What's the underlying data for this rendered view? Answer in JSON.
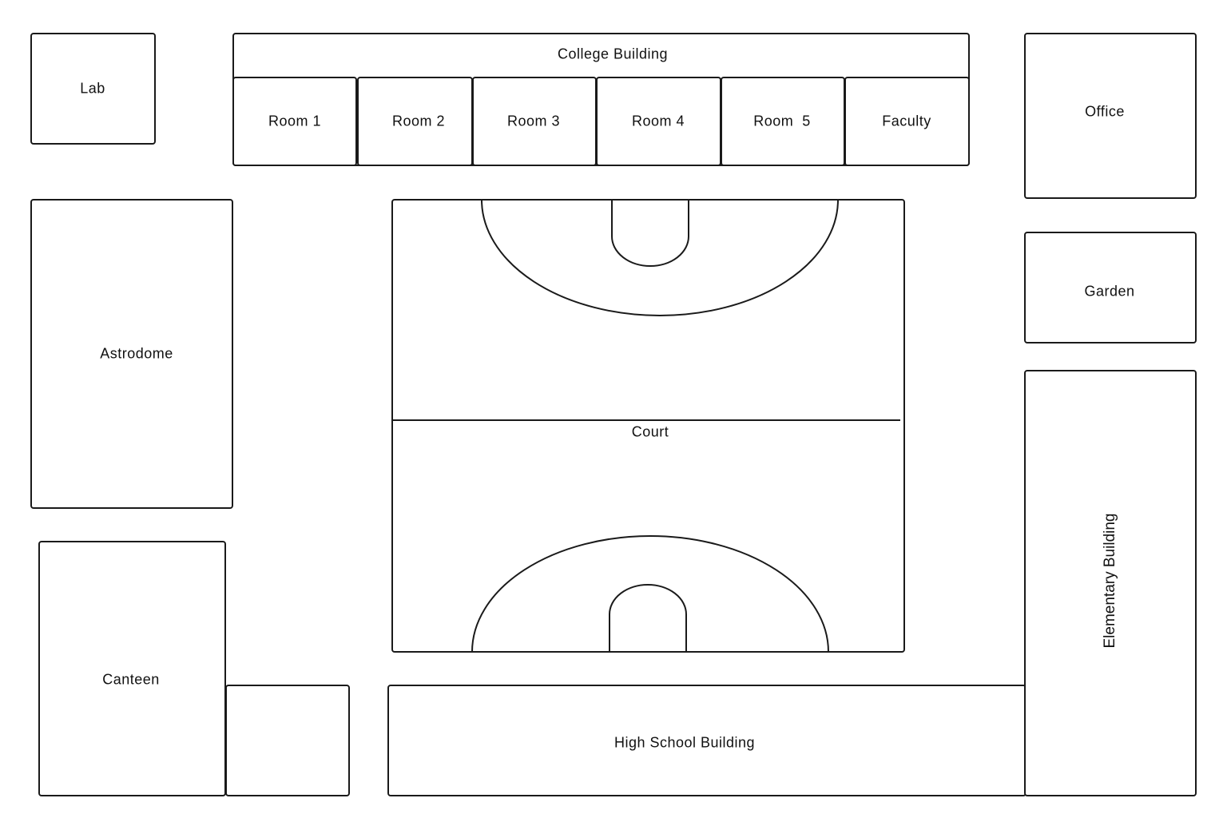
{
  "map": {
    "lab": "Lab",
    "college_building": "College Building",
    "rooms": [
      "Room 1",
      "Room 2",
      "Room 3",
      "Room 4",
      "Room  5",
      "Faculty"
    ],
    "office": "Office",
    "astrodome": "Astrodome",
    "court": "Court",
    "garden": "Garden",
    "canteen": "Canteen",
    "high_school_building": "High School Building",
    "elementary_building": "Elementary Building"
  }
}
